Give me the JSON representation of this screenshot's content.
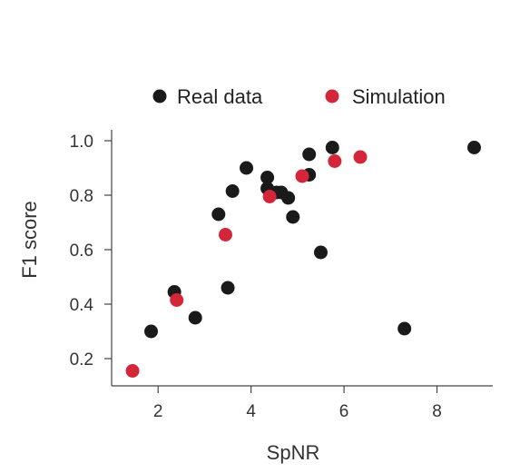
{
  "chart_data": {
    "type": "scatter",
    "xlabel": "SpNR",
    "ylabel": "F1 score",
    "xlim": [
      1.0,
      9.2
    ],
    "ylim": [
      0.1,
      1.04
    ],
    "xticks": [
      2,
      4,
      6,
      8
    ],
    "xtick_labels": [
      "2",
      "4",
      "6",
      "8"
    ],
    "yticks": [
      0.2,
      0.4,
      0.6,
      0.8,
      1.0
    ],
    "ytick_labels": [
      "0.2",
      "0.4",
      "0.6",
      "0.8",
      "1.0"
    ],
    "legend_position": "top",
    "grid": false,
    "series": [
      {
        "name": "Real data",
        "color": "#1a1a1a",
        "points": [
          {
            "x": 1.85,
            "y": 0.3
          },
          {
            "x": 2.35,
            "y": 0.445
          },
          {
            "x": 2.8,
            "y": 0.35
          },
          {
            "x": 3.3,
            "y": 0.73
          },
          {
            "x": 3.5,
            "y": 0.46
          },
          {
            "x": 3.6,
            "y": 0.815
          },
          {
            "x": 3.9,
            "y": 0.9
          },
          {
            "x": 4.35,
            "y": 0.865
          },
          {
            "x": 4.35,
            "y": 0.825
          },
          {
            "x": 4.55,
            "y": 0.81
          },
          {
            "x": 4.65,
            "y": 0.81
          },
          {
            "x": 4.8,
            "y": 0.79
          },
          {
            "x": 4.9,
            "y": 0.72
          },
          {
            "x": 5.25,
            "y": 0.95
          },
          {
            "x": 5.25,
            "y": 0.875
          },
          {
            "x": 5.5,
            "y": 0.59
          },
          {
            "x": 5.75,
            "y": 0.975
          },
          {
            "x": 7.3,
            "y": 0.31
          },
          {
            "x": 8.8,
            "y": 0.975
          }
        ]
      },
      {
        "name": "Simulation",
        "color": "#d3263a",
        "points": [
          {
            "x": 1.45,
            "y": 0.155
          },
          {
            "x": 2.4,
            "y": 0.415
          },
          {
            "x": 3.45,
            "y": 0.655
          },
          {
            "x": 4.4,
            "y": 0.795
          },
          {
            "x": 5.1,
            "y": 0.87
          },
          {
            "x": 5.8,
            "y": 0.925
          },
          {
            "x": 6.35,
            "y": 0.94
          }
        ]
      }
    ]
  }
}
